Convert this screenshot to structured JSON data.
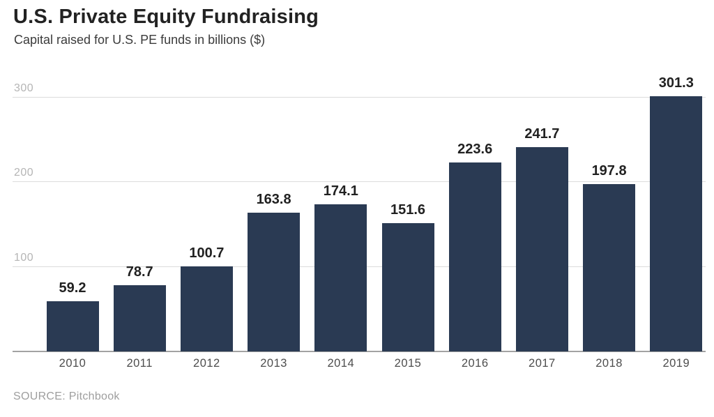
{
  "header": {
    "title": "U.S. Private Equity Fundraising",
    "subtitle": "Capital raised for U.S. PE funds in billions ($)"
  },
  "footer": {
    "source": "SOURCE: Pitchbook"
  },
  "chart_data": {
    "type": "bar",
    "title": "U.S. Private Equity Fundraising",
    "subtitle": "Capital raised for U.S. PE funds in billions ($)",
    "source": "SOURCE: Pitchbook",
    "categories": [
      "2010",
      "2011",
      "2012",
      "2013",
      "2014",
      "2015",
      "2016",
      "2017",
      "2018",
      "2019"
    ],
    "values": [
      59.2,
      78.7,
      100.7,
      163.8,
      174.1,
      151.6,
      223.6,
      241.7,
      197.8,
      301.3
    ],
    "value_labels": [
      "59.2",
      "78.7",
      "100.7",
      "163.8",
      "174.1",
      "151.6",
      "223.6",
      "241.7",
      "197.8",
      "301.3"
    ],
    "xlabel": "",
    "ylabel": "",
    "yticks": [
      100,
      200,
      300
    ],
    "ylim": [
      0,
      341
    ],
    "grid": true,
    "legend": "none",
    "colors": {
      "bar": "#2a3a53",
      "gridline": "#dcdcdc",
      "axis_line": "#a3a3a3",
      "value_label": "#212121",
      "ytick_label": "#b5b5b5",
      "xtick_label": "#4d4d4d",
      "title": "#222222",
      "subtitle": "#3b3b3b",
      "source": "#9e9e9e"
    }
  }
}
